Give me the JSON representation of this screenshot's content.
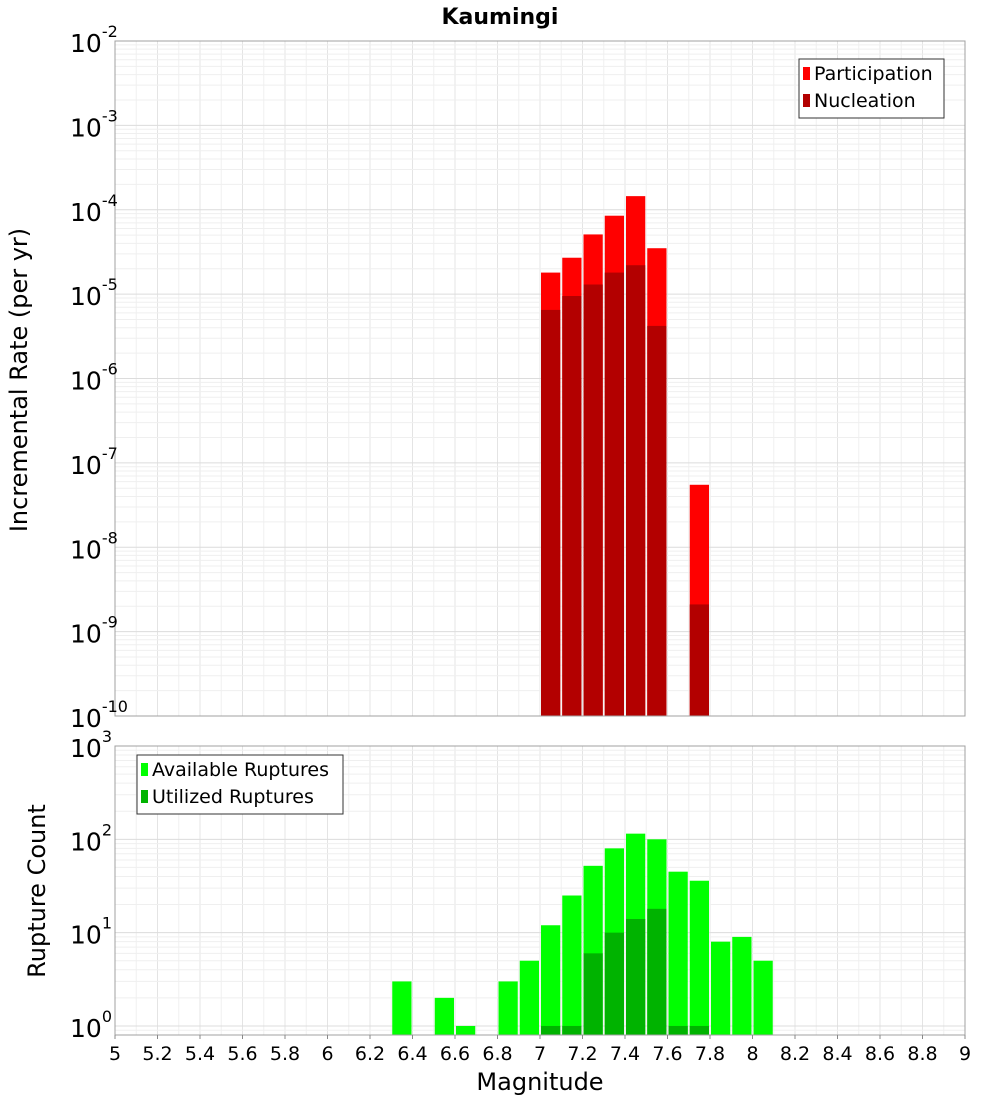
{
  "chart_data": [
    {
      "type": "bar",
      "title": "Kaumingi",
      "ylabel": "Incremental Rate (per yr)",
      "xlabel": "",
      "yscale": "log",
      "ylim": [
        1e-10,
        0.01
      ],
      "xlim": [
        5,
        9
      ],
      "grid": true,
      "legend_position": "top-right",
      "y_tick_exponents": [
        "-2",
        "-3",
        "-4",
        "-5",
        "-6",
        "-7",
        "-8",
        "-9",
        "-10"
      ],
      "y_tick_base": "10",
      "series": [
        {
          "name": "Participation",
          "color": "#ff0000",
          "x": [
            7.05,
            7.15,
            7.25,
            7.35,
            7.45,
            7.55,
            7.65,
            7.75
          ],
          "values": [
            1.8e-05,
            2.7e-05,
            5.1e-05,
            8.5e-05,
            0.000145,
            3.5e-05,
            1e-10,
            5.5e-08
          ]
        },
        {
          "name": "Nucleation",
          "color": "#b30000",
          "x": [
            7.05,
            7.15,
            7.25,
            7.35,
            7.45,
            7.55,
            7.65,
            7.75
          ],
          "values": [
            6.5e-06,
            9.5e-06,
            1.3e-05,
            1.8e-05,
            2.2e-05,
            4.2e-06,
            1e-10,
            2.1e-09
          ]
        }
      ]
    },
    {
      "type": "bar",
      "title": "",
      "ylabel": "Rupture Count",
      "xlabel": "Magnitude",
      "yscale": "log",
      "ylim": [
        0.8,
        1000
      ],
      "xlim": [
        5,
        9
      ],
      "grid": true,
      "legend_position": "top-left",
      "y_tick_exponents": [
        "3",
        "2",
        "1",
        "0"
      ],
      "y_tick_base": "10",
      "x_ticks": [
        "5",
        "5.2",
        "5.4",
        "5.6",
        "5.8",
        "6",
        "6.2",
        "6.4",
        "6.6",
        "6.8",
        "7",
        "7.2",
        "7.4",
        "7.6",
        "7.8",
        "8",
        "8.2",
        "8.4",
        "8.6",
        "8.8",
        "9"
      ],
      "series": [
        {
          "name": "Available Ruptures",
          "color": "#00ff00",
          "x": [
            6.35,
            6.55,
            6.65,
            6.85,
            6.95,
            7.05,
            7.15,
            7.25,
            7.35,
            7.45,
            7.55,
            7.65,
            7.75,
            7.85,
            7.95,
            8.05
          ],
          "values": [
            3,
            2,
            1,
            3,
            5,
            12,
            25,
            52,
            80,
            115,
            100,
            45,
            36,
            8,
            9,
            5
          ]
        },
        {
          "name": "Utilized Ruptures",
          "color": "#00b300",
          "x": [
            7.05,
            7.15,
            7.25,
            7.35,
            7.45,
            7.55,
            7.65,
            7.75
          ],
          "values": [
            1,
            1,
            6,
            10,
            14,
            18,
            1,
            1
          ]
        }
      ]
    }
  ]
}
